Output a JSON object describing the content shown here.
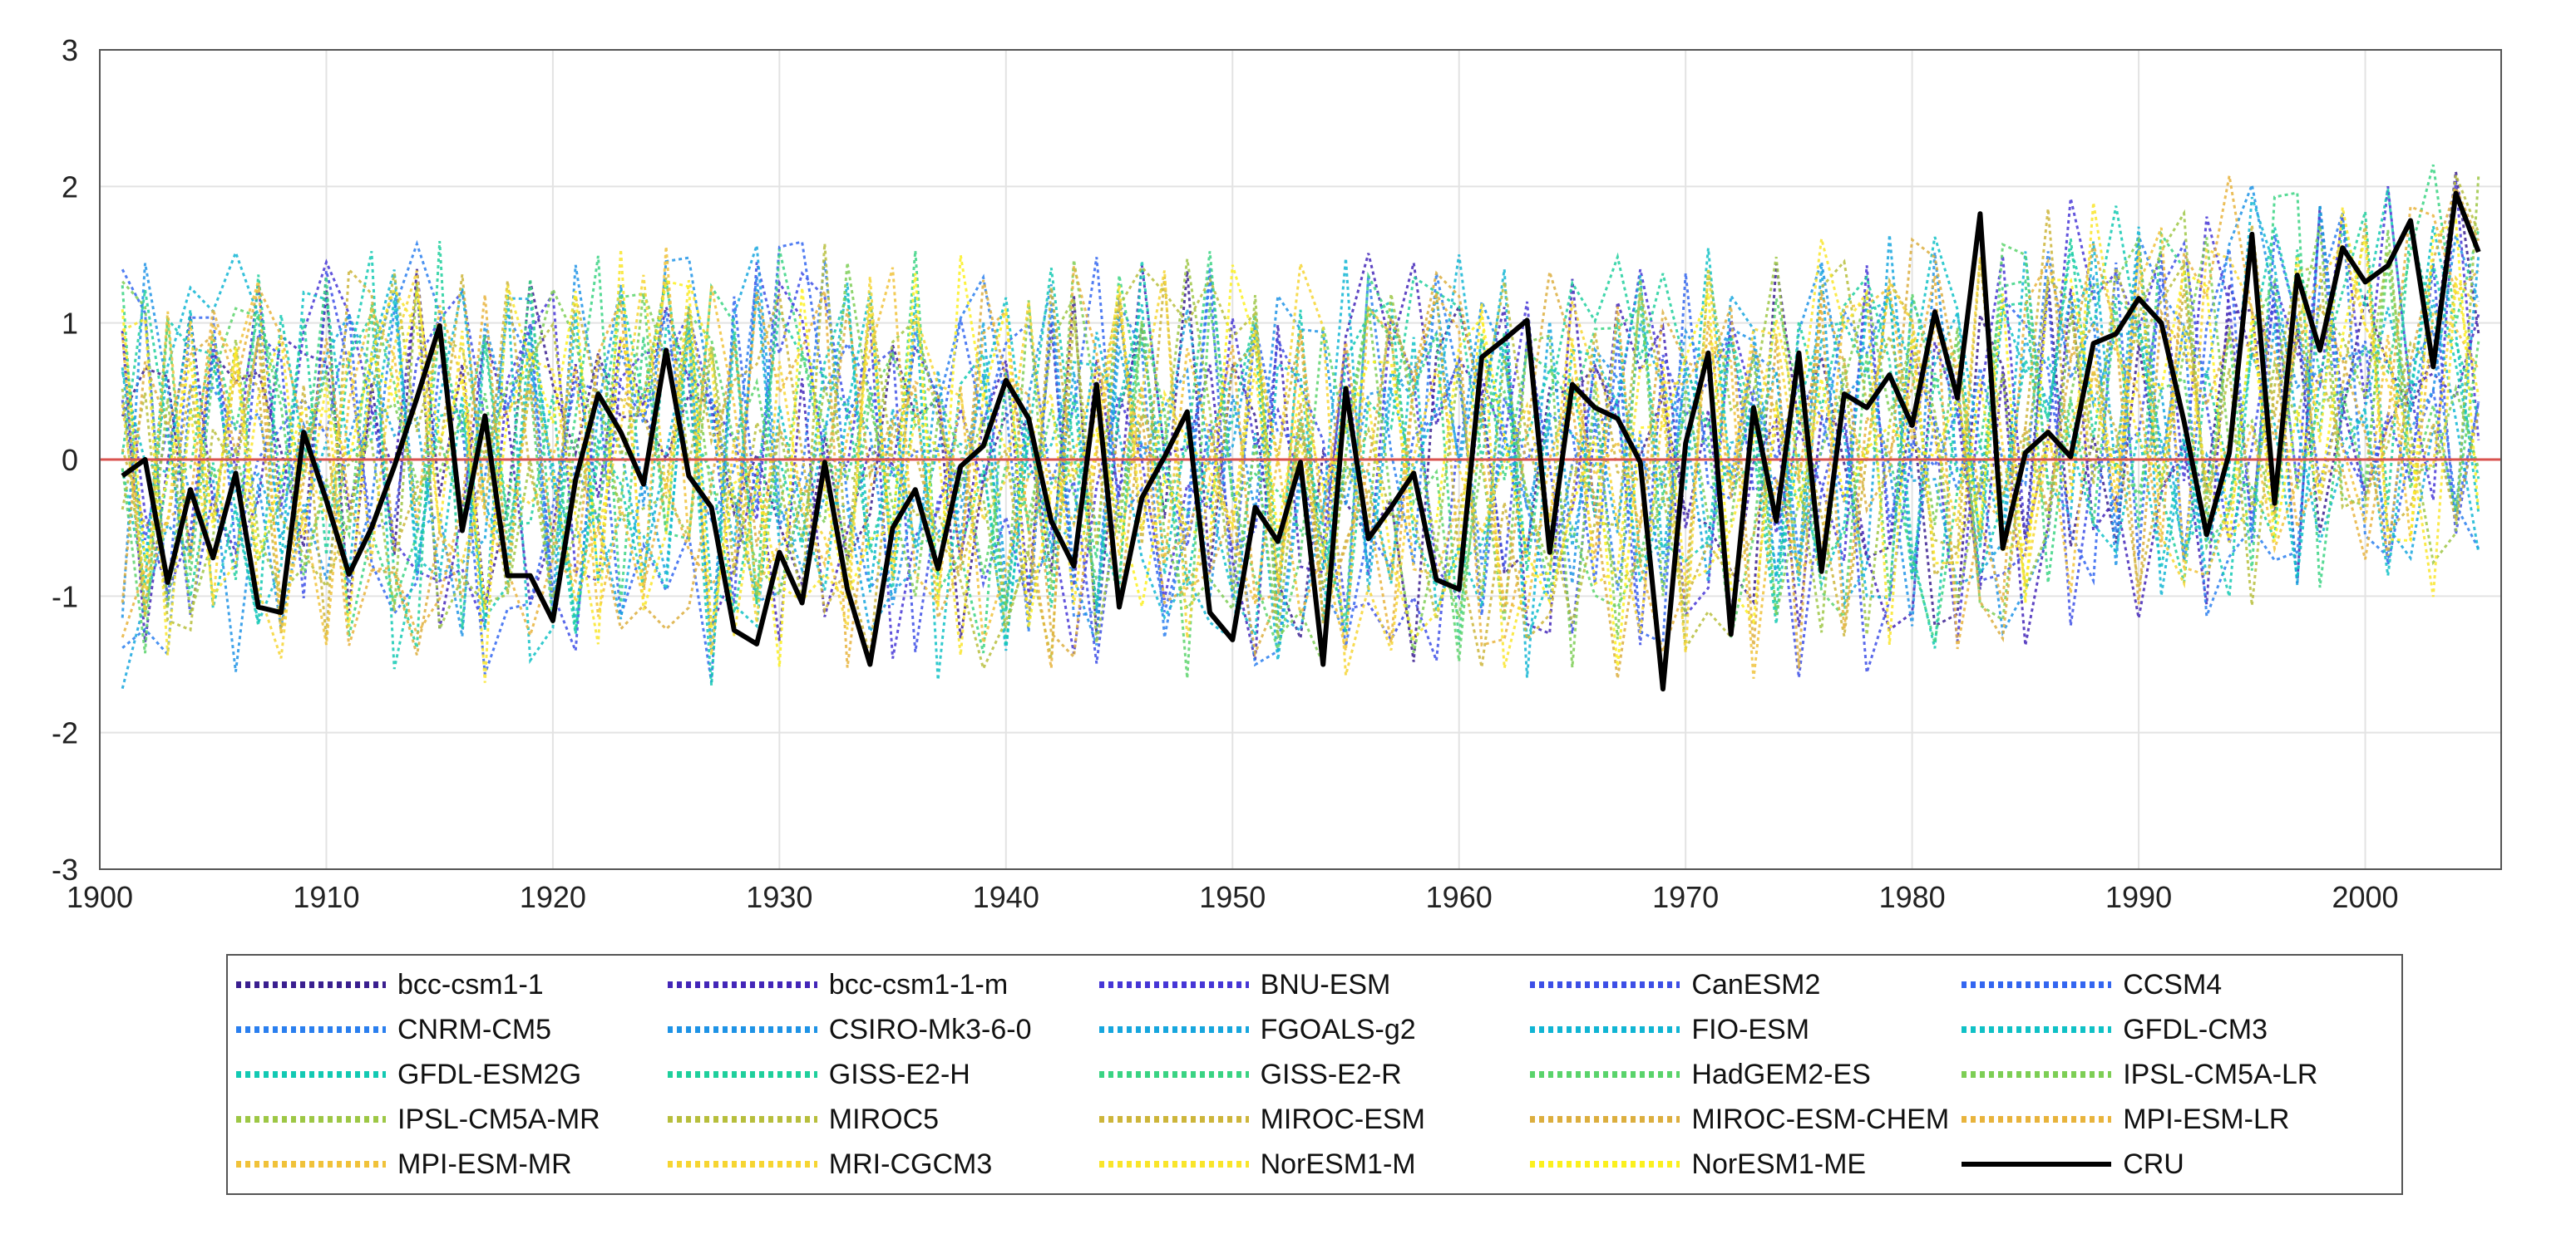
{
  "chart_data": {
    "type": "line",
    "title": "",
    "xlabel": "",
    "ylabel": "",
    "xlim": [
      1900,
      2006
    ],
    "ylim": [
      -3,
      3
    ],
    "x_ticks": [
      1900,
      1910,
      1920,
      1930,
      1940,
      1950,
      1960,
      1970,
      1980,
      1990,
      2000
    ],
    "y_ticks": [
      -3,
      -2,
      -1,
      0,
      1,
      2,
      3
    ],
    "grid": true,
    "zero_line_color": "#d9534f",
    "legend_position": "below",
    "observed_series": {
      "name": "CRU",
      "color": "#000000",
      "start_year": 1901,
      "values": [
        -0.12,
        0.0,
        -0.9,
        -0.22,
        -0.72,
        -0.1,
        -1.08,
        -1.12,
        0.2,
        -0.3,
        -0.84,
        -0.5,
        -0.05,
        0.45,
        0.98,
        -0.52,
        0.32,
        -0.85,
        -0.85,
        -1.18,
        -0.15,
        0.48,
        0.2,
        -0.18,
        0.8,
        -0.12,
        -0.35,
        -1.25,
        -1.35,
        -0.68,
        -1.05,
        -0.02,
        -0.95,
        -1.5,
        -0.5,
        -0.22,
        -0.8,
        -0.05,
        0.1,
        0.58,
        0.3,
        -0.45,
        -0.78,
        0.55,
        -1.08,
        -0.28,
        0.02,
        0.35,
        -1.12,
        -1.32,
        -0.35,
        -0.6,
        -0.02,
        -1.5,
        0.52,
        -0.58,
        -0.35,
        -0.1,
        -0.88,
        -0.95,
        0.75,
        0.88,
        1.02,
        -0.68,
        0.55,
        0.38,
        0.3,
        -0.02,
        -1.68,
        0.12,
        0.78,
        -1.28,
        0.38,
        -0.45,
        0.78,
        -0.82,
        0.48,
        0.38,
        0.62,
        0.25,
        1.08,
        0.45,
        1.8,
        -0.65,
        0.05,
        0.2,
        0.02,
        0.85,
        0.92,
        1.18,
        1.0,
        0.28,
        -0.55,
        0.05,
        1.65,
        -0.32,
        1.35,
        0.8,
        1.55,
        1.3,
        1.42,
        1.75,
        0.68,
        1.95,
        1.52
      ]
    },
    "model_series_note": "Simulated anomalies per model, start_year 1901, step 1; values generated to match the visual envelope",
    "model_start_year": 1901,
    "model_series": [
      {
        "name": "bcc-csm1-1",
        "color": "#3a1f8f"
      },
      {
        "name": "bcc-csm1-1-m",
        "color": "#4326b8"
      },
      {
        "name": "BNU-ESM",
        "color": "#4636d6"
      },
      {
        "name": "CanESM2",
        "color": "#3d4fe6"
      },
      {
        "name": "CCSM4",
        "color": "#3366f0"
      },
      {
        "name": "CNRM-CM5",
        "color": "#2a7fef"
      },
      {
        "name": "CSIRO-Mk3-6-0",
        "color": "#1e93e6"
      },
      {
        "name": "FGOALS-g2",
        "color": "#16a6de"
      },
      {
        "name": "FIO-ESM",
        "color": "#10b5d4"
      },
      {
        "name": "GFDL-CM3",
        "color": "#0fc1c6"
      },
      {
        "name": "GFDL-ESM2G",
        "color": "#13c9b3"
      },
      {
        "name": "GISS-E2-H",
        "color": "#1fcf9c"
      },
      {
        "name": "GISS-E2-R",
        "color": "#3ad383"
      },
      {
        "name": "HadGEM2-ES",
        "color": "#5ad36b"
      },
      {
        "name": "IPSL-CM5A-LR",
        "color": "#7dce55"
      },
      {
        "name": "IPSL-CM5A-MR",
        "color": "#9dc745"
      },
      {
        "name": "MIROC5",
        "color": "#b7be3c"
      },
      {
        "name": "MIROC-ESM",
        "color": "#cdb53a"
      },
      {
        "name": "MIROC-ESM-CHEM",
        "color": "#dcae3e"
      },
      {
        "name": "MPI-ESM-LR",
        "color": "#e8b33c"
      },
      {
        "name": "MPI-ESM-MR",
        "color": "#f0c23a"
      },
      {
        "name": "MRI-CGCM3",
        "color": "#f6d532"
      },
      {
        "name": "NorESM1-M",
        "color": "#f9e52a"
      },
      {
        "name": "NorESM1-ME",
        "color": "#fbf01e"
      },
      {
        "name": "CRU",
        "color": "#000000",
        "solid": true
      }
    ]
  }
}
